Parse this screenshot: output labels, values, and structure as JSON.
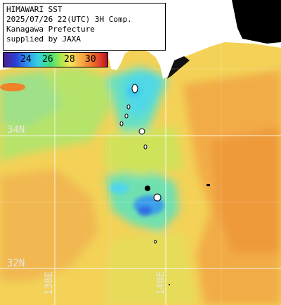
{
  "title": {
    "line1": "HIMAWARI SST",
    "line2": "2025/07/26 22(UTC) 3H Comp.",
    "line3": "Kanagawa Prefecture",
    "line4": "supplied by JAXA"
  },
  "legend": {
    "ticks": [
      "24",
      "26",
      "28",
      "30"
    ],
    "colors": [
      "#4b1f8c",
      "#2b40d8",
      "#35d2e0",
      "#3fe07a",
      "#f2e35a",
      "#f7b14a",
      "#e0402a",
      "#b0122a"
    ]
  },
  "grid": {
    "latitudes": [
      "34N",
      "32N"
    ],
    "longitudes": [
      "138E",
      "140E"
    ]
  },
  "colors": {
    "land": "#ffffff",
    "no_data": "#000000",
    "grid_line": "#ffffff"
  }
}
